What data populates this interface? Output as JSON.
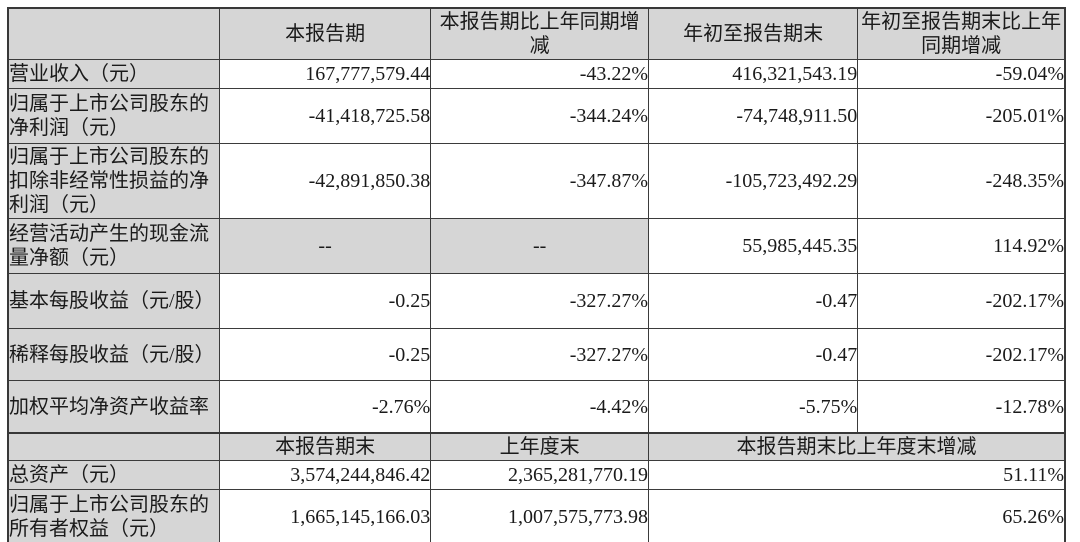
{
  "colors": {
    "page_bg": "#ffffff",
    "cell_shade_bg": "#d6d6d6",
    "border": "#3b3b3b",
    "text": "#1a1a1a"
  },
  "table": {
    "header_row1": {
      "col1": "",
      "col2": "本报告期",
      "col3": "本报告期比上年同期增减",
      "col4": "年初至报告期末",
      "col5": "年初至报告期末比上年同期增减"
    },
    "section1_rows": [
      {
        "label": "营业收入（元）",
        "values": [
          "167,777,579.44",
          "-43.22%",
          "416,321,543.19",
          "-59.04%"
        ]
      },
      {
        "label": "归属于上市公司股东的净利润（元）",
        "values": [
          "-41,418,725.58",
          "-344.24%",
          "-74,748,911.50",
          "-205.01%"
        ]
      },
      {
        "label": "归属于上市公司股东的扣除非经常性损益的净利润（元）",
        "values": [
          "-42,891,850.38",
          "-347.87%",
          "-105,723,492.29",
          "-248.35%"
        ]
      },
      {
        "label": "经营活动产生的现金流量净额（元）",
        "values": [
          "--",
          "--",
          "55,985,445.35",
          "114.92%"
        ]
      },
      {
        "label": "基本每股收益（元/股）",
        "values": [
          "-0.25",
          "-327.27%",
          "-0.47",
          "-202.17%"
        ]
      },
      {
        "label": "稀释每股收益（元/股）",
        "values": [
          "-0.25",
          "-327.27%",
          "-0.47",
          "-202.17%"
        ]
      },
      {
        "label": "加权平均净资产收益率",
        "values": [
          "-2.76%",
          "-4.42%",
          "-5.75%",
          "-12.78%"
        ]
      }
    ],
    "header_row2": {
      "col1": "",
      "col2": "本报告期末",
      "col3": "上年度末",
      "col45": "本报告期末比上年度末增减"
    },
    "section2_rows": [
      {
        "label": "总资产（元）",
        "current_period_end": "3,574,244,846.42",
        "prior_year_end": "2,365,281,770.19",
        "change": "51.11%"
      },
      {
        "label": "归属于上市公司股东的所有者权益（元）",
        "current_period_end": "1,665,145,166.03",
        "prior_year_end": "1,007,575,773.98",
        "change": "65.26%"
      }
    ]
  }
}
